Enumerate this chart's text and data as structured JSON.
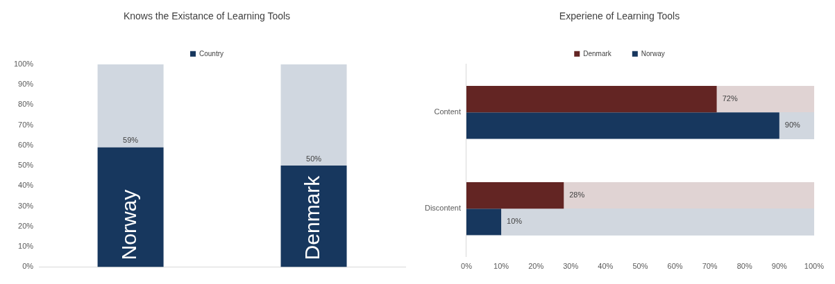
{
  "chart_data": [
    {
      "type": "bar",
      "title": "Knows the Existance of Learning Tools",
      "categories": [
        "Norway",
        "Denmark"
      ],
      "stacked": true,
      "legend": "top",
      "tick_labels": "y",
      "grid": false,
      "ylim": [
        0,
        100
      ],
      "yticks": [
        {
          "value": 0,
          "label": "0%"
        },
        {
          "value": 10,
          "label": "10%"
        },
        {
          "value": 20,
          "label": "20%"
        },
        {
          "value": 30,
          "label": "30%"
        },
        {
          "value": 40,
          "label": "40%"
        },
        {
          "value": 50,
          "label": "50%"
        },
        {
          "value": 60,
          "label": "60%"
        },
        {
          "value": 70,
          "label": "70%"
        },
        {
          "value": 80,
          "label": "80%"
        },
        {
          "value": 90,
          "label": "90%"
        },
        {
          "value": 100,
          "label": "100%"
        }
      ],
      "series": [
        {
          "name": "Country",
          "color": "#17375e",
          "values": [
            59,
            50
          ],
          "value_labels": [
            "59%",
            "50%"
          ]
        },
        {
          "color": "#d0d7e0",
          "values": [
            41,
            50
          ]
        }
      ]
    },
    {
      "type": "bar",
      "title": "Experiene of Learning Tools",
      "orientation": "horizontal",
      "categories": [
        "Content",
        "Discontent"
      ],
      "legend": "top",
      "grid": false,
      "xlim": [
        0,
        100
      ],
      "xticks": [
        {
          "value": 0,
          "label": "0%"
        },
        {
          "value": 10,
          "label": "10%"
        },
        {
          "value": 20,
          "label": "20%"
        },
        {
          "value": 30,
          "label": "30%"
        },
        {
          "value": 40,
          "label": "40%"
        },
        {
          "value": 50,
          "label": "50%"
        },
        {
          "value": 60,
          "label": "60%"
        },
        {
          "value": 70,
          "label": "70%"
        },
        {
          "value": 80,
          "label": "80%"
        },
        {
          "value": 90,
          "label": "90%"
        },
        {
          "value": 100,
          "label": "100%"
        }
      ],
      "series": [
        {
          "name": "Denmark",
          "color": "#632523",
          "values": [
            72,
            28
          ],
          "value_labels": [
            "72%",
            "28%"
          ]
        },
        {
          "name": "Norway",
          "color": "#17375e",
          "values": [
            90,
            10
          ],
          "value_labels": [
            "90%",
            "10%"
          ]
        }
      ]
    }
  ]
}
